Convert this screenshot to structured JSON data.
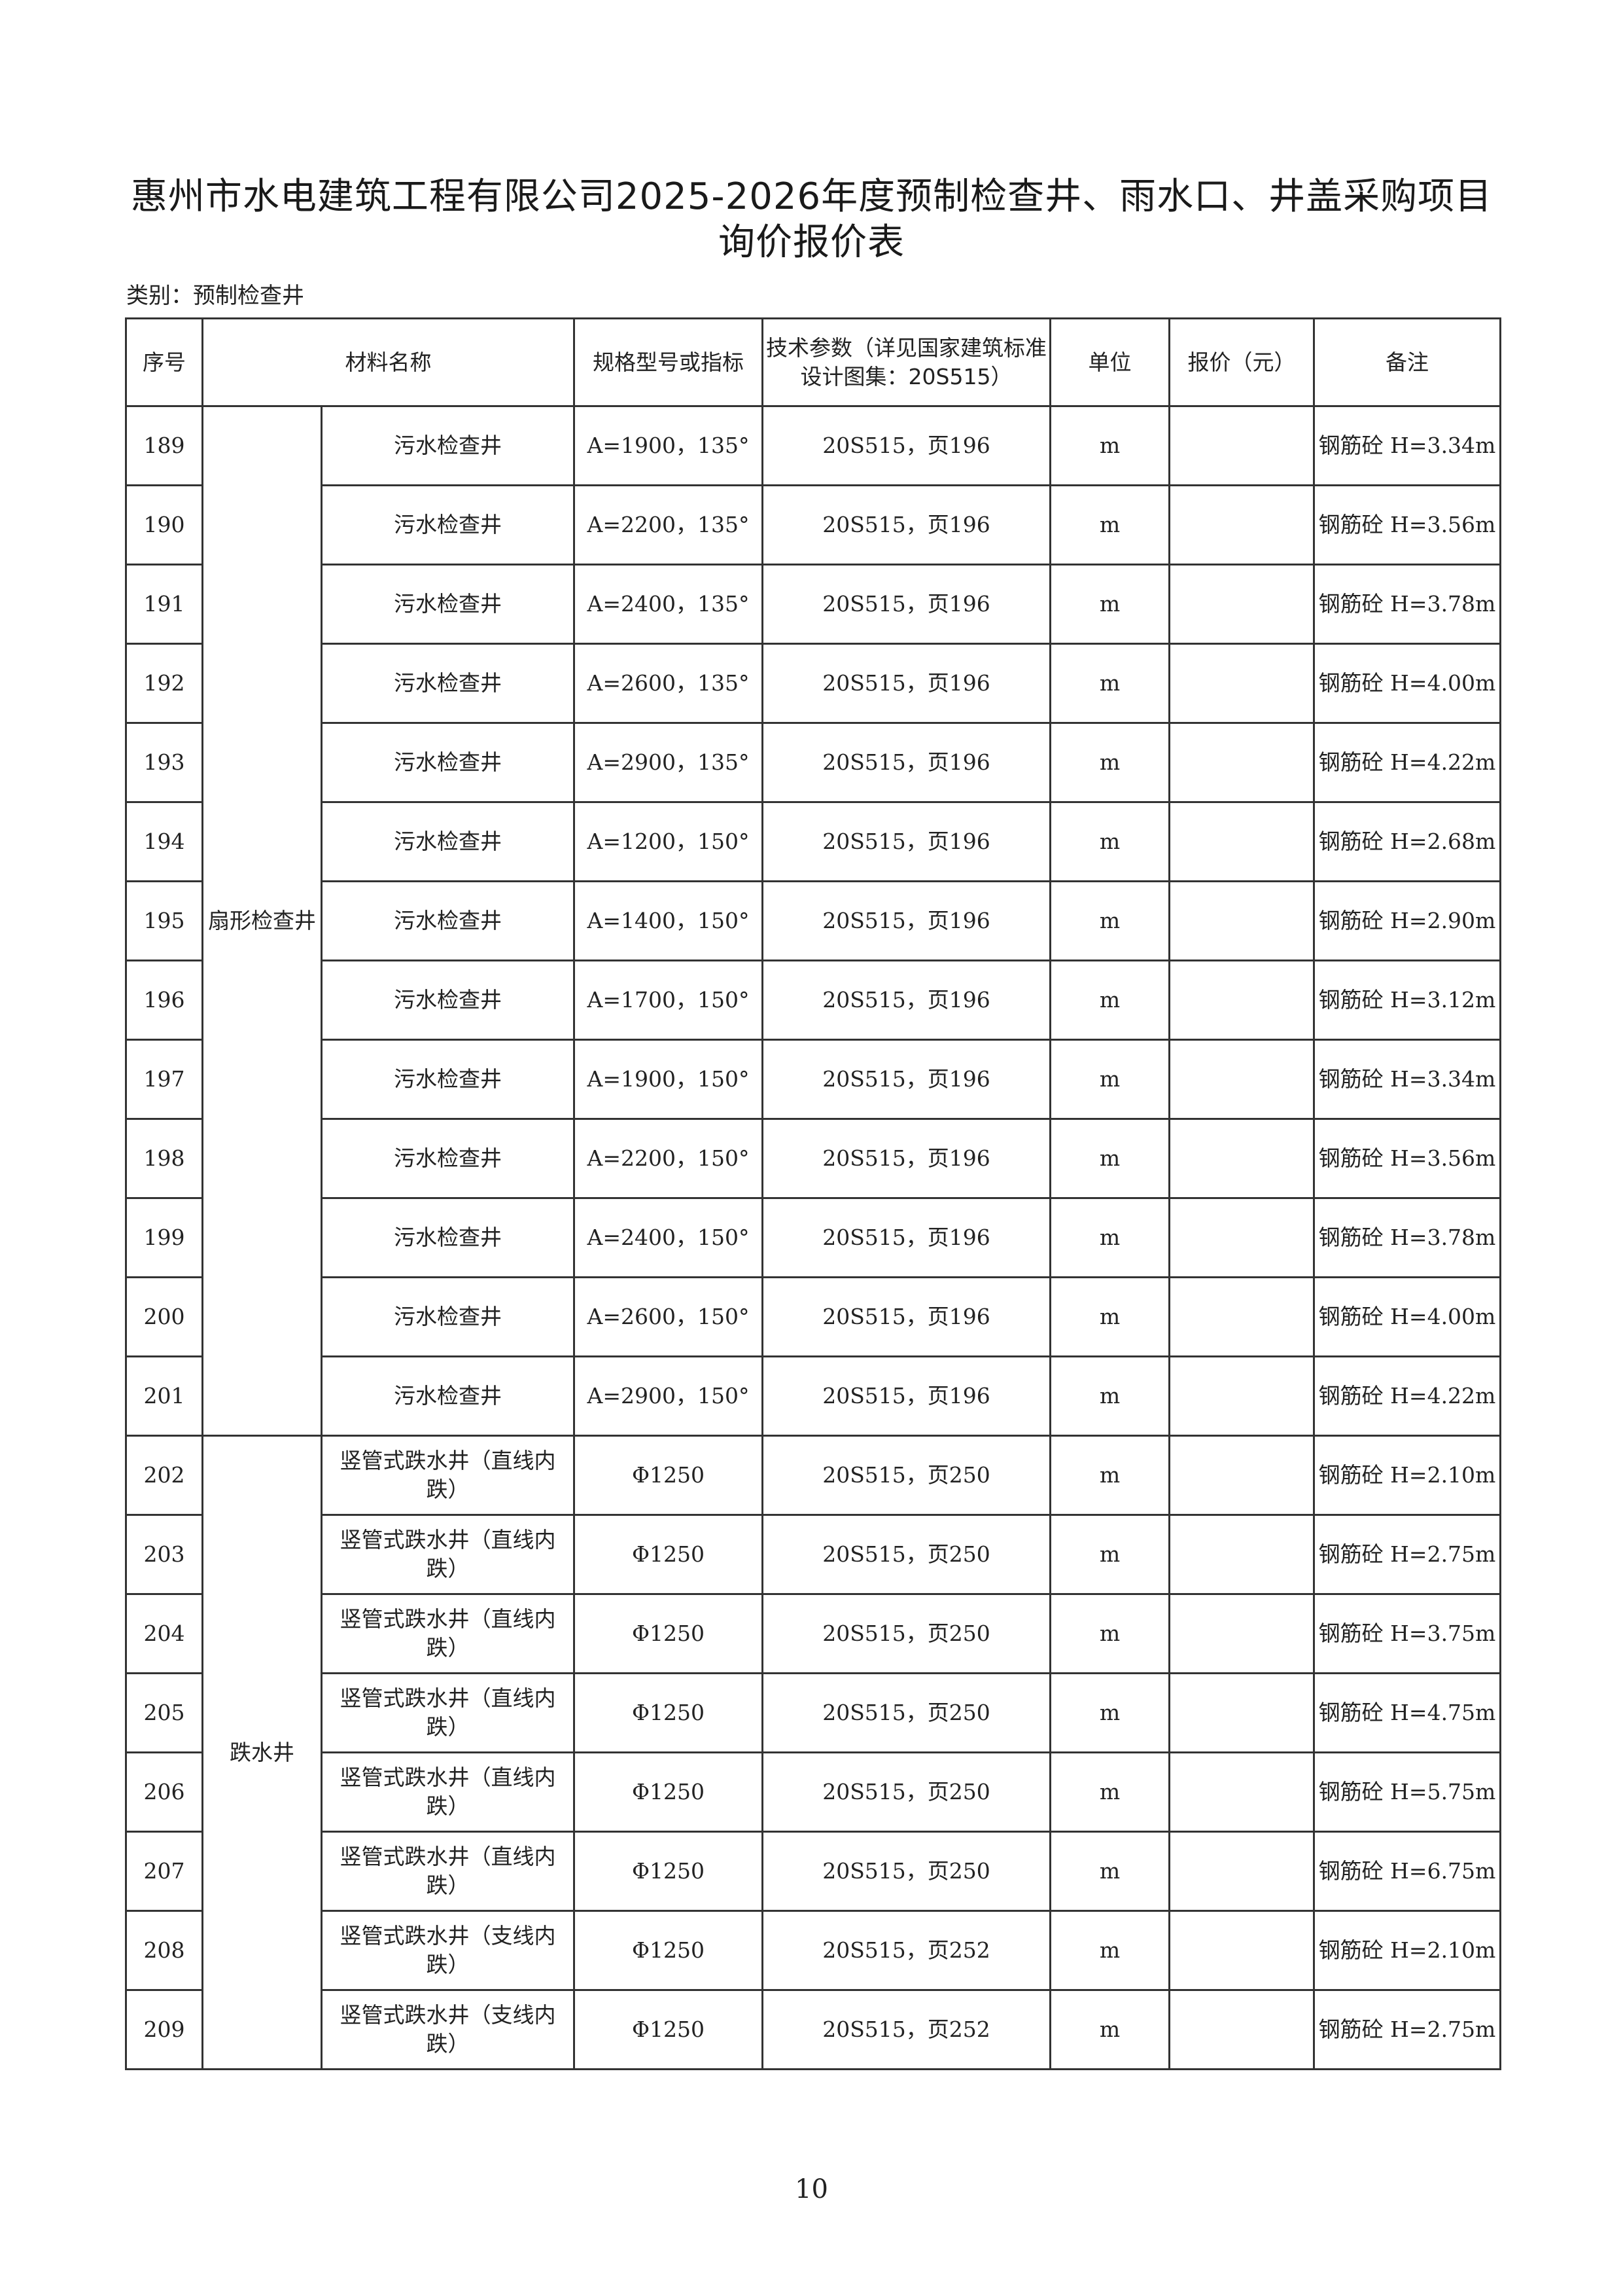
{
  "title_line1": "惠州市水电建筑工程有限公司2025-2026年度预制检查井、雨水口、井盖采购项目",
  "title_line2": "询价报价表",
  "category": "类别：预制检查井",
  "headers": [
    "序号",
    "材料名称",
    "规格型号或指标",
    "技术参数（详见国家建筑标准设计图集：20S515）",
    "单位",
    "报价（元）",
    "备注"
  ],
  "groups": [
    {
      "label": "扇形检查井",
      "rows": 13
    },
    {
      "label": "跌水井",
      "rows": 8
    }
  ],
  "rows": [
    {
      "no": "189",
      "name": "污水检查井",
      "spec": "A=1900，135°",
      "tech": "20S515，页196",
      "unit": "m",
      "price": "",
      "note": "钢筋砼 H=3.34m"
    },
    {
      "no": "190",
      "name": "污水检查井",
      "spec": "A=2200，135°",
      "tech": "20S515，页196",
      "unit": "m",
      "price": "",
      "note": "钢筋砼 H=3.56m"
    },
    {
      "no": "191",
      "name": "污水检查井",
      "spec": "A=2400，135°",
      "tech": "20S515，页196",
      "unit": "m",
      "price": "",
      "note": "钢筋砼 H=3.78m"
    },
    {
      "no": "192",
      "name": "污水检查井",
      "spec": "A=2600，135°",
      "tech": "20S515，页196",
      "unit": "m",
      "price": "",
      "note": "钢筋砼 H=4.00m"
    },
    {
      "no": "193",
      "name": "污水检查井",
      "spec": "A=2900，135°",
      "tech": "20S515，页196",
      "unit": "m",
      "price": "",
      "note": "钢筋砼 H=4.22m"
    },
    {
      "no": "194",
      "name": "污水检查井",
      "spec": "A=1200，150°",
      "tech": "20S515，页196",
      "unit": "m",
      "price": "",
      "note": "钢筋砼 H=2.68m"
    },
    {
      "no": "195",
      "name": "污水检查井",
      "spec": "A=1400，150°",
      "tech": "20S515，页196",
      "unit": "m",
      "price": "",
      "note": "钢筋砼 H=2.90m"
    },
    {
      "no": "196",
      "name": "污水检查井",
      "spec": "A=1700，150°",
      "tech": "20S515，页196",
      "unit": "m",
      "price": "",
      "note": "钢筋砼 H=3.12m"
    },
    {
      "no": "197",
      "name": "污水检查井",
      "spec": "A=1900，150°",
      "tech": "20S515，页196",
      "unit": "m",
      "price": "",
      "note": "钢筋砼 H=3.34m"
    },
    {
      "no": "198",
      "name": "污水检查井",
      "spec": "A=2200，150°",
      "tech": "20S515，页196",
      "unit": "m",
      "price": "",
      "note": "钢筋砼 H=3.56m"
    },
    {
      "no": "199",
      "name": "污水检查井",
      "spec": "A=2400，150°",
      "tech": "20S515，页196",
      "unit": "m",
      "price": "",
      "note": "钢筋砼 H=3.78m"
    },
    {
      "no": "200",
      "name": "污水检查井",
      "spec": "A=2600，150°",
      "tech": "20S515，页196",
      "unit": "m",
      "price": "",
      "note": "钢筋砼 H=4.00m"
    },
    {
      "no": "201",
      "name": "污水检查井",
      "spec": "A=2900，150°",
      "tech": "20S515，页196",
      "unit": "m",
      "price": "",
      "note": "钢筋砼 H=4.22m"
    },
    {
      "no": "202",
      "name": "竖管式跌水井（直线内跌）",
      "spec": "Φ1250",
      "tech": "20S515，页250",
      "unit": "m",
      "price": "",
      "note": "钢筋砼 H=2.10m"
    },
    {
      "no": "203",
      "name": "竖管式跌水井（直线内跌）",
      "spec": "Φ1250",
      "tech": "20S515，页250",
      "unit": "m",
      "price": "",
      "note": "钢筋砼 H=2.75m"
    },
    {
      "no": "204",
      "name": "竖管式跌水井（直线内跌）",
      "spec": "Φ1250",
      "tech": "20S515，页250",
      "unit": "m",
      "price": "",
      "note": "钢筋砼 H=3.75m"
    },
    {
      "no": "205",
      "name": "竖管式跌水井（直线内跌）",
      "spec": "Φ1250",
      "tech": "20S515，页250",
      "unit": "m",
      "price": "",
      "note": "钢筋砼 H=4.75m"
    },
    {
      "no": "206",
      "name": "竖管式跌水井（直线内跌）",
      "spec": "Φ1250",
      "tech": "20S515，页250",
      "unit": "m",
      "price": "",
      "note": "钢筋砼 H=5.75m"
    },
    {
      "no": "207",
      "name": "竖管式跌水井（直线内跌）",
      "spec": "Φ1250",
      "tech": "20S515，页250",
      "unit": "m",
      "price": "",
      "note": "钢筋砼 H=6.75m"
    },
    {
      "no": "208",
      "name": "竖管式跌水井（支线内跌）",
      "spec": "Φ1250",
      "tech": "20S515，页252",
      "unit": "m",
      "price": "",
      "note": "钢筋砼 H=2.10m"
    },
    {
      "no": "209",
      "name": "竖管式跌水井（支线内跌）",
      "spec": "Φ1250",
      "tech": "20S515，页252",
      "unit": "m",
      "price": "",
      "note": "钢筋砼 H=2.75m"
    }
  ],
  "page_number": "10"
}
